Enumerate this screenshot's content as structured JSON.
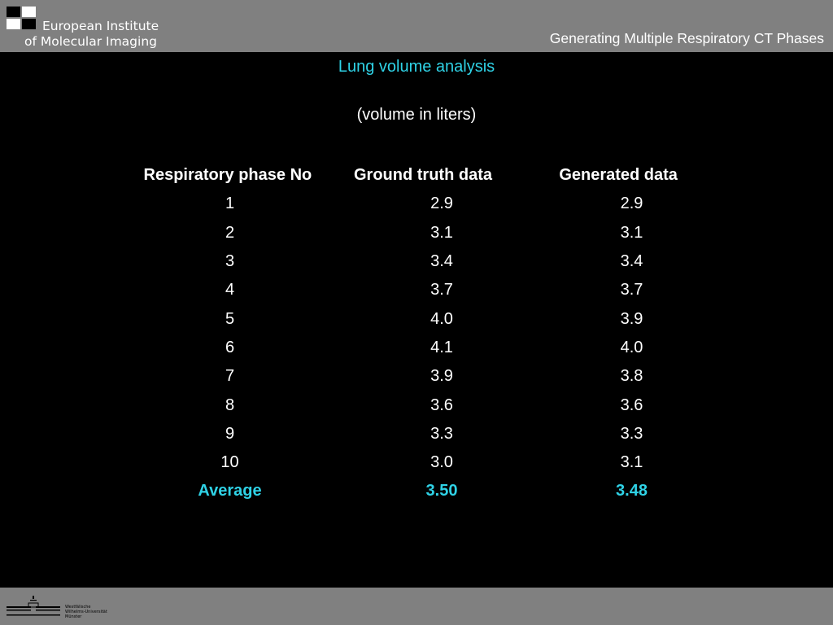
{
  "header": {
    "org_line1": "European Institute",
    "org_line2": "of Molecular Imaging",
    "deck_title": "Generating Multiple Respiratory CT Phases"
  },
  "slide": {
    "title": "Lung volume analysis",
    "subtitle": "(volume in liters)"
  },
  "table": {
    "headers": [
      "Respiratory phase No",
      "Ground truth data",
      "Generated data"
    ],
    "rows": [
      [
        "1",
        "2.9",
        "2.9"
      ],
      [
        "2",
        "3.1",
        "3.1"
      ],
      [
        "3",
        "3.4",
        "3.4"
      ],
      [
        "4",
        "3.7",
        "3.7"
      ],
      [
        "5",
        "4.0",
        "3.9"
      ],
      [
        "6",
        "4.1",
        "4.0"
      ],
      [
        "7",
        "3.9",
        "3.8"
      ],
      [
        "8",
        "3.6",
        "3.6"
      ],
      [
        "9",
        "3.3",
        "3.3"
      ],
      [
        "10",
        "3.0",
        "3.1"
      ]
    ],
    "average": [
      "Average",
      "3.50",
      "3.48"
    ]
  },
  "footer": {
    "university_logo_text": [
      "Westfälische",
      "Wilhelms-Universität",
      "Münster"
    ]
  },
  "colors": {
    "accent": "#2fd2e6",
    "background": "#000000",
    "bar": "#808080"
  }
}
